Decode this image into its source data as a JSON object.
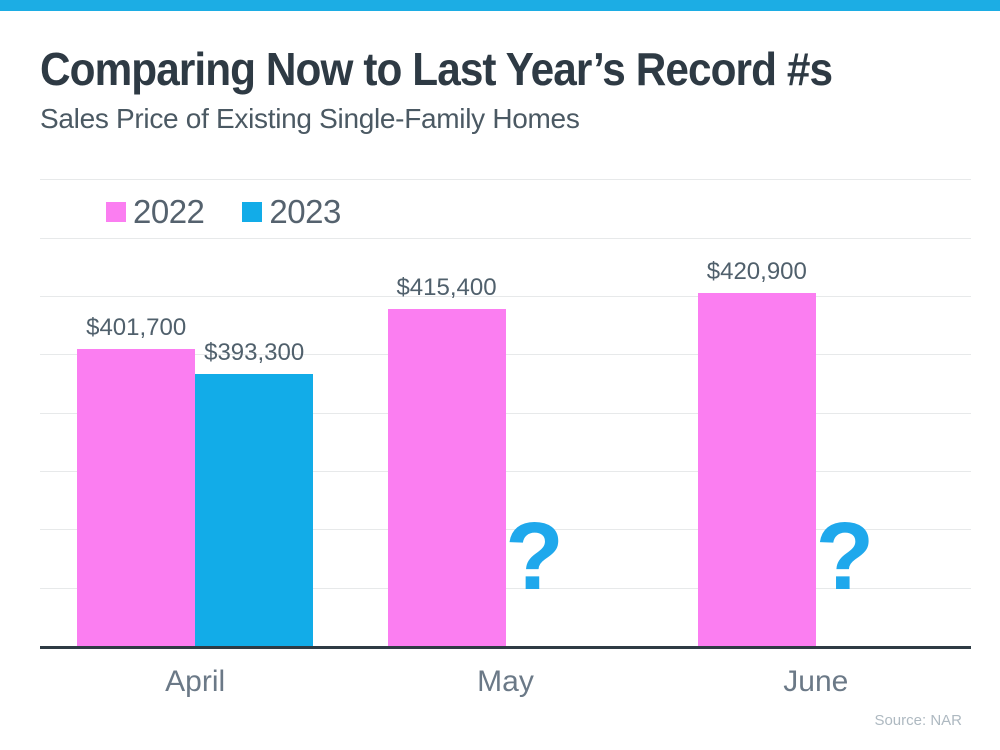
{
  "page": {
    "background": "#FFFFFF",
    "accent_bar_color": "#1CADE4"
  },
  "header": {
    "title": "Comparing Now to Last Year’s Record #s",
    "subtitle": "Sales Price of Existing Single-Family Homes"
  },
  "legend": {
    "items": [
      {
        "label": "2022",
        "color": "#FB7EF1"
      },
      {
        "label": "2023",
        "color": "#12ACE8"
      }
    ]
  },
  "chart_data": {
    "type": "bar",
    "title": "Comparing Now to Last Year’s Record #s",
    "subtitle": "Sales Price of Existing Single-Family Homes",
    "categories": [
      "April",
      "May",
      "June"
    ],
    "series": [
      {
        "name": "2022",
        "color": "#FB7EF1",
        "values": [
          401700,
          415400,
          420900
        ],
        "data_labels": [
          "$401,700",
          "$415,400",
          "$420,900"
        ]
      },
      {
        "name": "2023",
        "color": "#12ACE8",
        "values": [
          393300,
          null,
          null
        ],
        "data_labels": [
          "$393,300",
          "?",
          "?"
        ],
        "missing_marker": "?",
        "missing_marker_color": "#1FA8EC"
      }
    ],
    "ylabel": "",
    "xlabel": "",
    "ylim": [
      300000,
      460000
    ],
    "grid_step": 20000,
    "grid": true,
    "y_tick_labels_visible": false,
    "legend_position": "top-left-inside"
  },
  "footer": {
    "source": "Source: NAR"
  },
  "colors": {
    "title_text": "#2E3A44",
    "subtitle_text": "#4B5963",
    "legend_text": "#55626E",
    "data_label_text": "#50606C",
    "x_label_text": "#6B7987",
    "gridline": "#E7E9EA",
    "axis_line": "#2E3B44",
    "source_text": "#AEB9C1"
  }
}
